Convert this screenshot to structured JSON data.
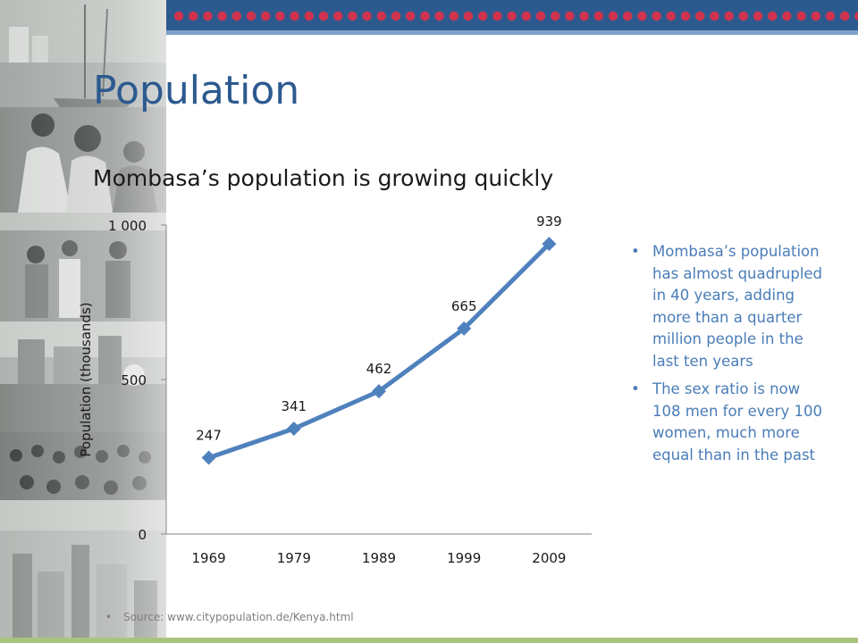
{
  "slide": {
    "title": "Population",
    "bullets": [
      "Mombasa’s population has almost quadrupled in 40 years, adding more than a quarter million people in the last ten years",
      "The sex ratio is now 108 men for every 100 women, much more equal than in the past"
    ],
    "source": "Source: www.citypopulation.de/Kenya.html",
    "bullet_glyph": "•",
    "colors": {
      "title": "#2c5a8f",
      "top_band": "#2d5a8e",
      "dots": "#d0334e",
      "line": "#4f81bd",
      "bullet_text": "#4a7db8",
      "bottom_line": "#a9c47f"
    }
  },
  "chart_data": {
    "type": "line",
    "title": "Mombasa’s population is growing quickly",
    "ylabel": "Population (thousands)",
    "xlabel": "",
    "categories": [
      "1969",
      "1979",
      "1989",
      "1999",
      "2009"
    ],
    "series": [
      {
        "values": [
          247,
          341,
          462,
          665,
          939
        ]
      }
    ],
    "data_labels": [
      "247",
      "341",
      "462",
      "665",
      "939"
    ],
    "yticks": [
      {
        "value": 0,
        "label": "0"
      },
      {
        "value": 500,
        "label": "500"
      },
      {
        "value": 1000,
        "label": "1 000"
      }
    ],
    "ylim": [
      0,
      1000
    ],
    "marker": "diamond",
    "grid": false,
    "legend": "none"
  }
}
